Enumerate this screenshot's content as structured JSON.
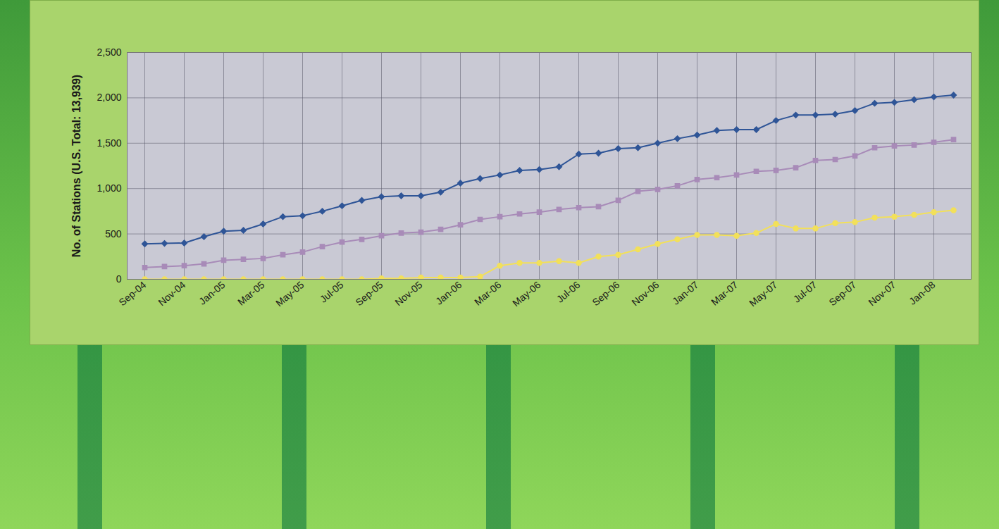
{
  "chart_data": {
    "type": "line",
    "ylabel": "No. of Stations (U.S. Total: 13,939)",
    "categories": [
      "Sep-04",
      null,
      "Nov-04",
      null,
      "Jan-05",
      null,
      "Mar-05",
      null,
      "May-05",
      null,
      "Jul-05",
      null,
      "Sep-05",
      null,
      "Nov-05",
      null,
      "Jan-06",
      null,
      "Mar-06",
      null,
      "May-06",
      null,
      "Jul-06",
      null,
      "Sep-06",
      null,
      "Nov-06",
      null,
      "Jan-07",
      null,
      "Mar-07",
      null,
      "May-07",
      null,
      "Jul-07",
      null,
      "Sep-07",
      null,
      "Nov-07",
      null,
      "Jan-08",
      null
    ],
    "series": [
      {
        "color": "#2f5597",
        "marker": "diamond",
        "values": [
          390,
          395,
          400,
          470,
          530,
          540,
          610,
          690,
          700,
          750,
          810,
          870,
          910,
          920,
          920,
          960,
          1060,
          1110,
          1150,
          1200,
          1210,
          1240,
          1380,
          1390,
          1440,
          1450,
          1500,
          1550,
          1590,
          1640,
          1650,
          1650,
          1750,
          1810,
          1810,
          1820,
          1860,
          1940,
          1950,
          1980,
          2010,
          2030
        ]
      },
      {
        "color": "#a88bb8",
        "marker": "square",
        "values": [
          130,
          140,
          150,
          170,
          210,
          220,
          230,
          270,
          300,
          360,
          410,
          440,
          480,
          510,
          520,
          550,
          600,
          660,
          690,
          720,
          740,
          770,
          790,
          800,
          870,
          970,
          990,
          1030,
          1100,
          1120,
          1150,
          1190,
          1200,
          1230,
          1310,
          1320,
          1360,
          1450,
          1470,
          1480,
          1510,
          1540
        ]
      },
      {
        "color": "#f2e05a",
        "marker": "circle",
        "values": [
          0,
          0,
          0,
          0,
          0,
          0,
          0,
          0,
          0,
          0,
          0,
          0,
          10,
          10,
          20,
          20,
          20,
          30,
          150,
          180,
          180,
          200,
          180,
          250,
          270,
          330,
          390,
          440,
          490,
          490,
          480,
          510,
          610,
          560,
          560,
          620,
          630,
          680,
          690,
          710,
          740,
          760
        ]
      }
    ],
    "ylim": [
      0,
      2500
    ],
    "yticks": [
      0,
      500,
      1000,
      1500,
      2000,
      2500
    ],
    "grid": true
  }
}
